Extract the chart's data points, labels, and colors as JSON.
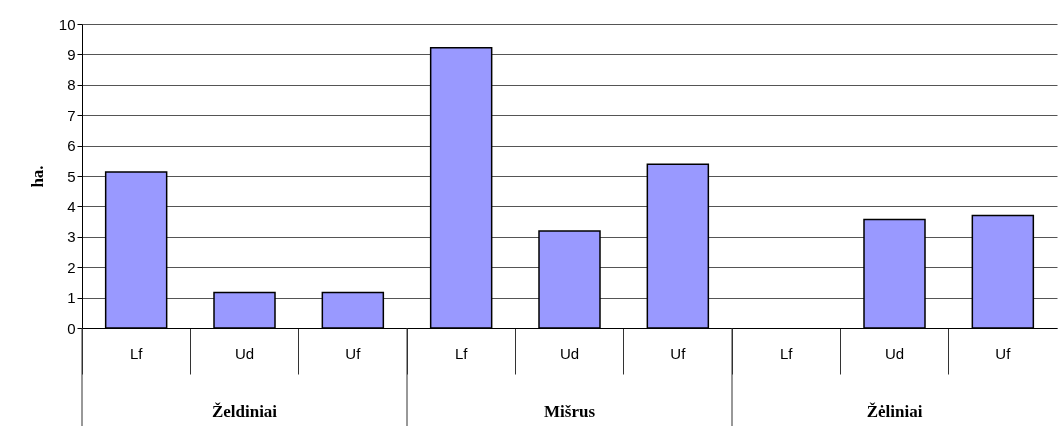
{
  "chart_data": {
    "type": "bar",
    "ylabel": "ha.",
    "categories": [
      "Lf",
      "Ud",
      "Uf",
      "Lf",
      "Ud",
      "Uf",
      "Lf",
      "Ud",
      "Uf"
    ],
    "values": [
      5.13,
      1.17,
      1.17,
      9.22,
      3.19,
      5.39,
      null,
      3.57,
      3.7
    ],
    "color": "#9999ff",
    "annotations": [
      "Želdiniai",
      "Mišrus",
      "Žėliniai"
    ],
    "ylim": [
      0,
      10
    ],
    "yticks": [
      0,
      1,
      2,
      3,
      4,
      5,
      6,
      7,
      8,
      9,
      10
    ],
    "grid": "y"
  }
}
